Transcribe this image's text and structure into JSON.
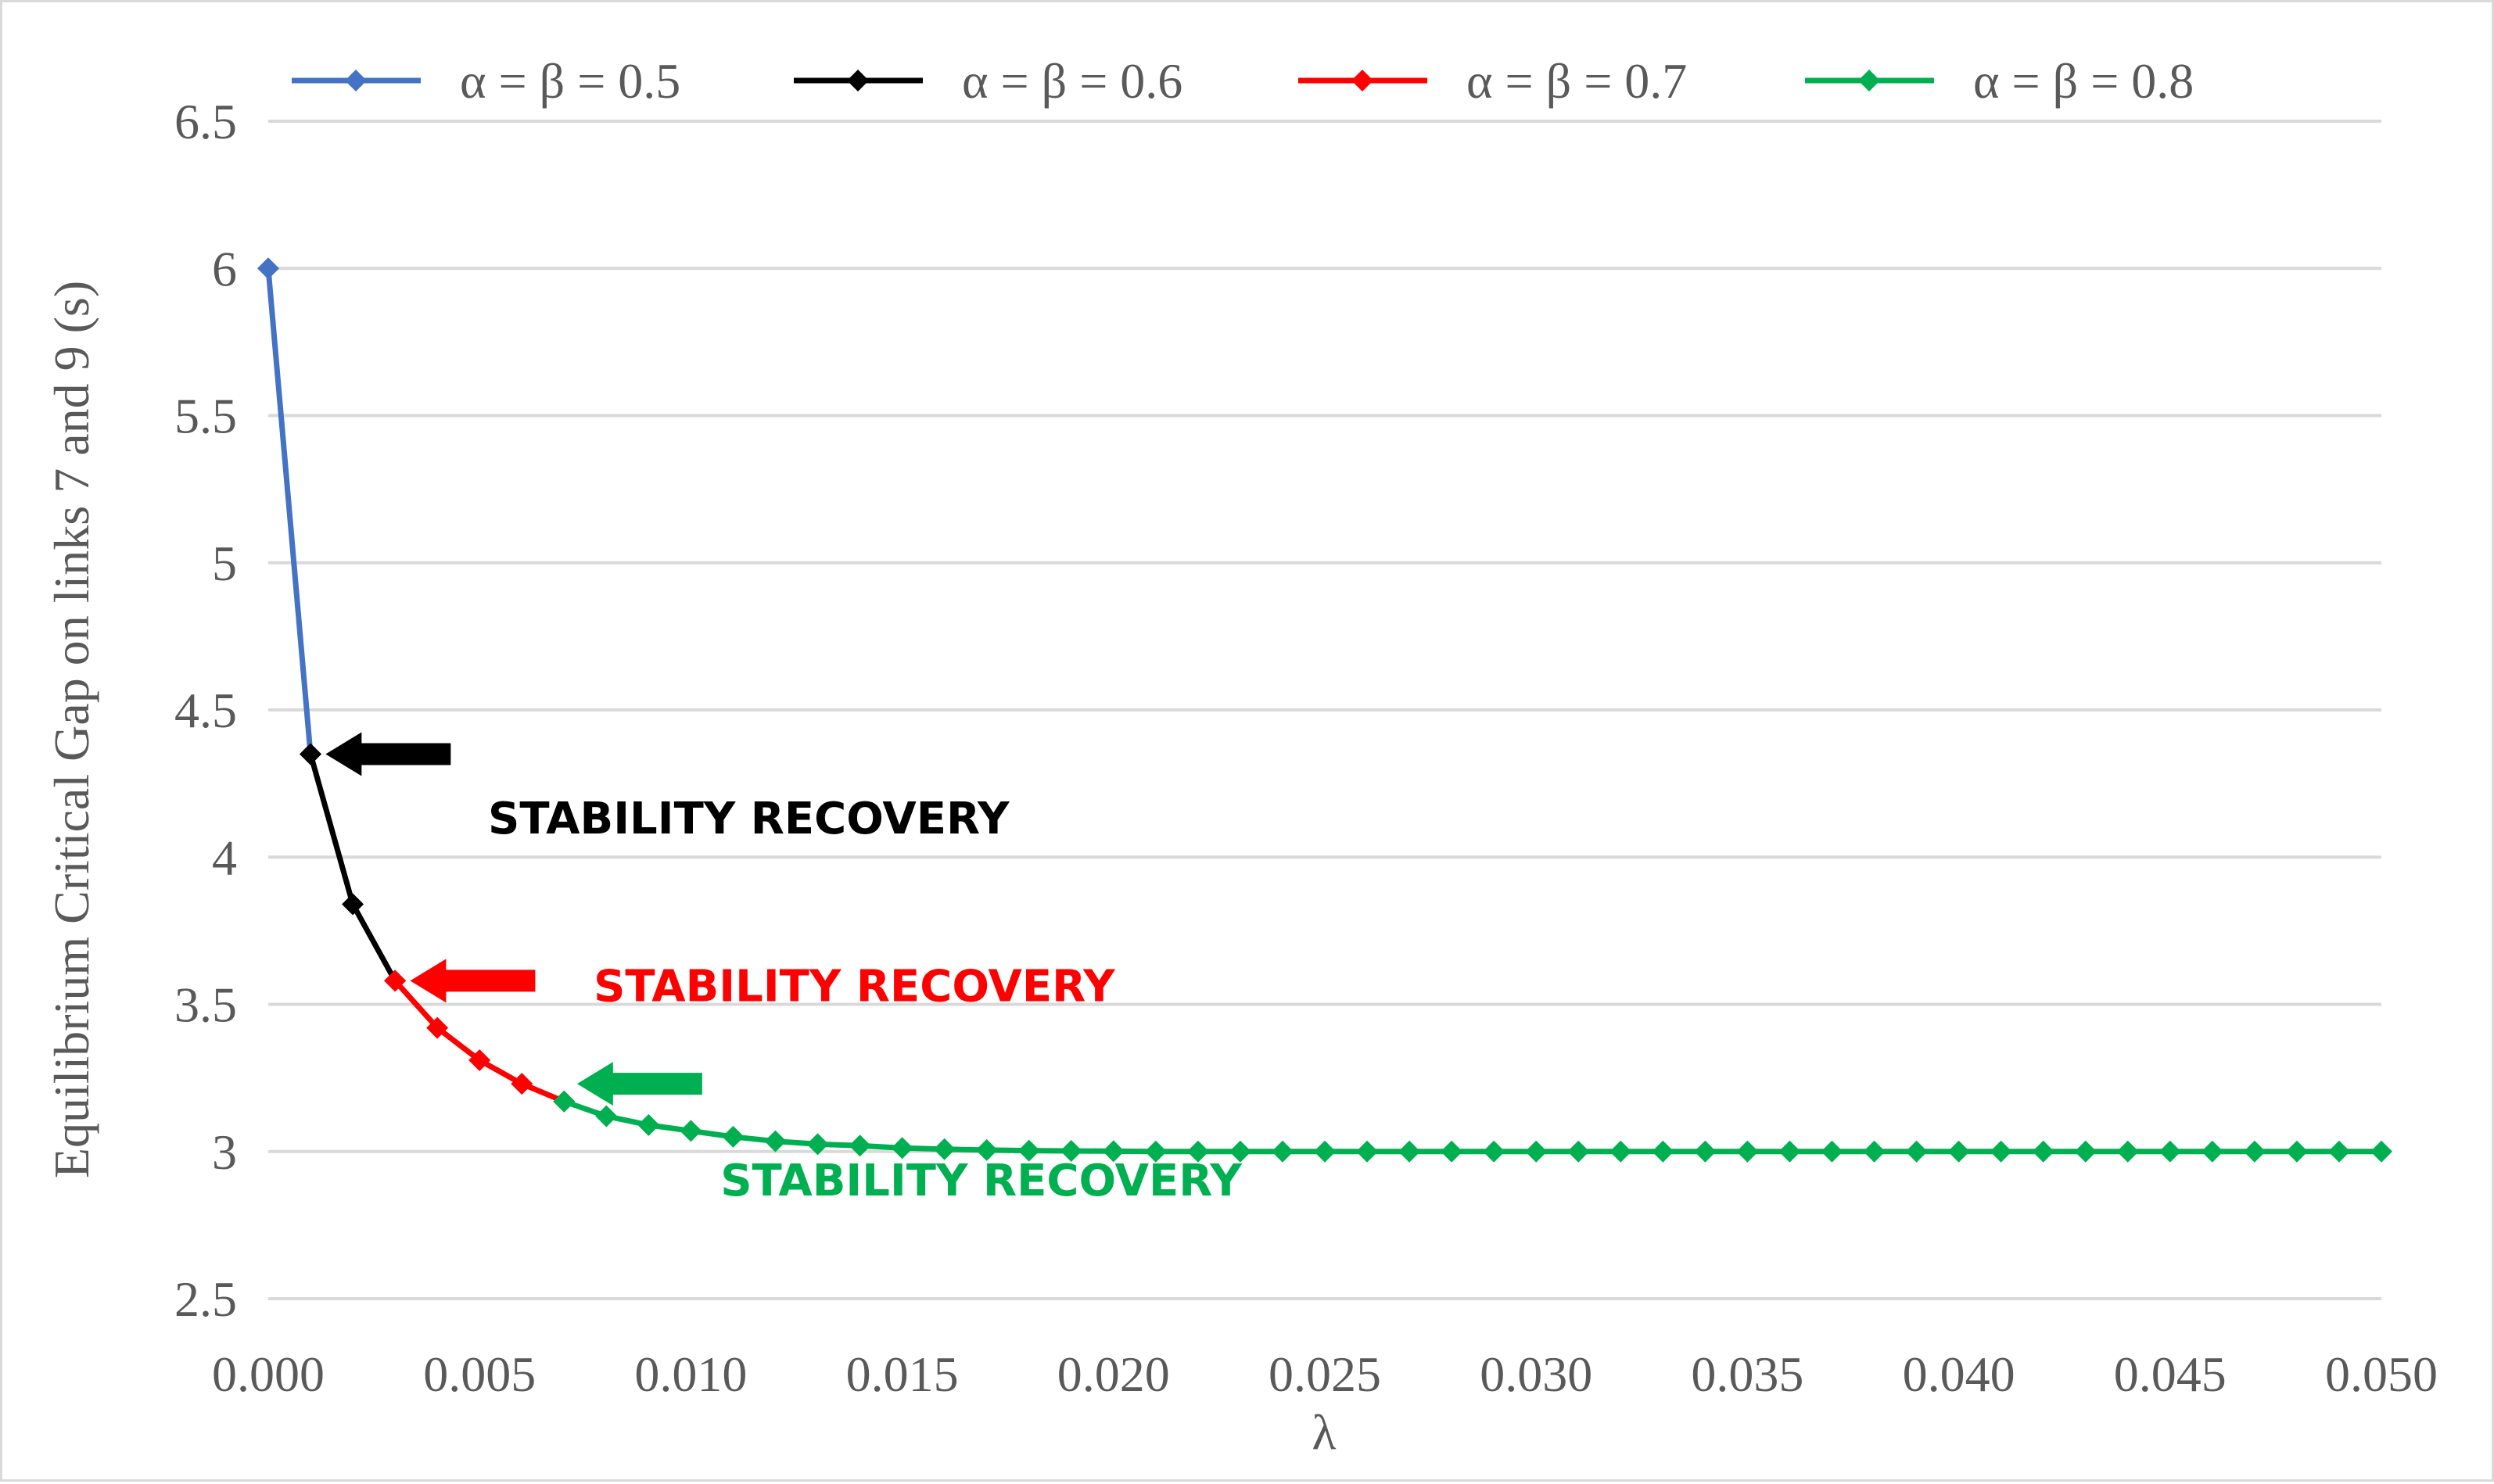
{
  "chart_data": {
    "type": "line",
    "title": "",
    "xlabel": "λ",
    "ylabel": "Equilibrium Critical Gap on links 7 and 9 (s)",
    "xlim": [
      0,
      0.05
    ],
    "ylim": [
      2.5,
      6.5
    ],
    "grid": true,
    "legend_position": "top",
    "x_ticks": [
      "0.000",
      "0.005",
      "0.010",
      "0.015",
      "0.020",
      "0.025",
      "0.030",
      "0.035",
      "0.040",
      "0.045",
      "0.050"
    ],
    "y_ticks": [
      "2.5",
      "3",
      "3.5",
      "4",
      "4.5",
      "5",
      "5.5",
      "6",
      "6.5"
    ],
    "series": [
      {
        "name": "α = β = 0.5",
        "color": "#4472c4",
        "x": [
          0,
          0.001
        ],
        "y": [
          6.0,
          4.35
        ]
      },
      {
        "name": "α = β = 0.6",
        "color": "#000000",
        "x": [
          0.001,
          0.002,
          0.003
        ],
        "y": [
          4.35,
          3.84,
          3.58
        ]
      },
      {
        "name": "α = β = 0.7",
        "color": "#ff0000",
        "x": [
          0.003,
          0.004,
          0.005,
          0.006,
          0.007
        ],
        "y": [
          3.58,
          3.42,
          3.31,
          3.23,
          3.17
        ]
      },
      {
        "name": "α = β = 0.8",
        "color": "#00b050",
        "x": [
          0.007,
          0.008,
          0.009,
          0.01,
          0.011,
          0.012,
          0.013,
          0.014,
          0.015,
          0.016,
          0.017,
          0.018,
          0.019,
          0.02,
          0.021,
          0.022,
          0.023,
          0.024,
          0.025,
          0.026,
          0.027,
          0.028,
          0.029,
          0.03,
          0.031,
          0.032,
          0.033,
          0.034,
          0.035,
          0.036,
          0.037,
          0.038,
          0.039,
          0.04,
          0.041,
          0.042,
          0.043,
          0.044,
          0.045,
          0.046,
          0.047,
          0.048,
          0.049,
          0.05
        ],
        "y": [
          3.17,
          3.12,
          3.09,
          3.07,
          3.05,
          3.035,
          3.025,
          3.02,
          3.012,
          3.008,
          3.005,
          3.003,
          3.002,
          3.001,
          3.0,
          3.0,
          3.0,
          3.0,
          3.0,
          3.0,
          3.0,
          3.0,
          3.0,
          3.0,
          3.0,
          3.0,
          3.0,
          3.0,
          3.0,
          3.0,
          3.0,
          3.0,
          3.0,
          3.0,
          3.0,
          3.0,
          3.0,
          3.0,
          3.0,
          3.0,
          3.0,
          3.0,
          3.0,
          3.0
        ]
      }
    ],
    "annotations": [
      {
        "text": "STABILITY RECOVERY",
        "color": "#000000",
        "arrow_x": 0.00095,
        "arrow_y": 4.35,
        "text_x": 0.0052,
        "text_y": 4.08
      },
      {
        "text": "STABILITY RECOVERY",
        "color": "#ff0000",
        "arrow_x": 0.00295,
        "arrow_y": 3.58,
        "text_x": 0.0077,
        "text_y": 3.51
      },
      {
        "text": "STABILITY RECOVERY",
        "color": "#00b050",
        "arrow_x": 0.0069,
        "arrow_y": 3.23,
        "text_x": 0.0107,
        "text_y": 2.85
      }
    ]
  }
}
